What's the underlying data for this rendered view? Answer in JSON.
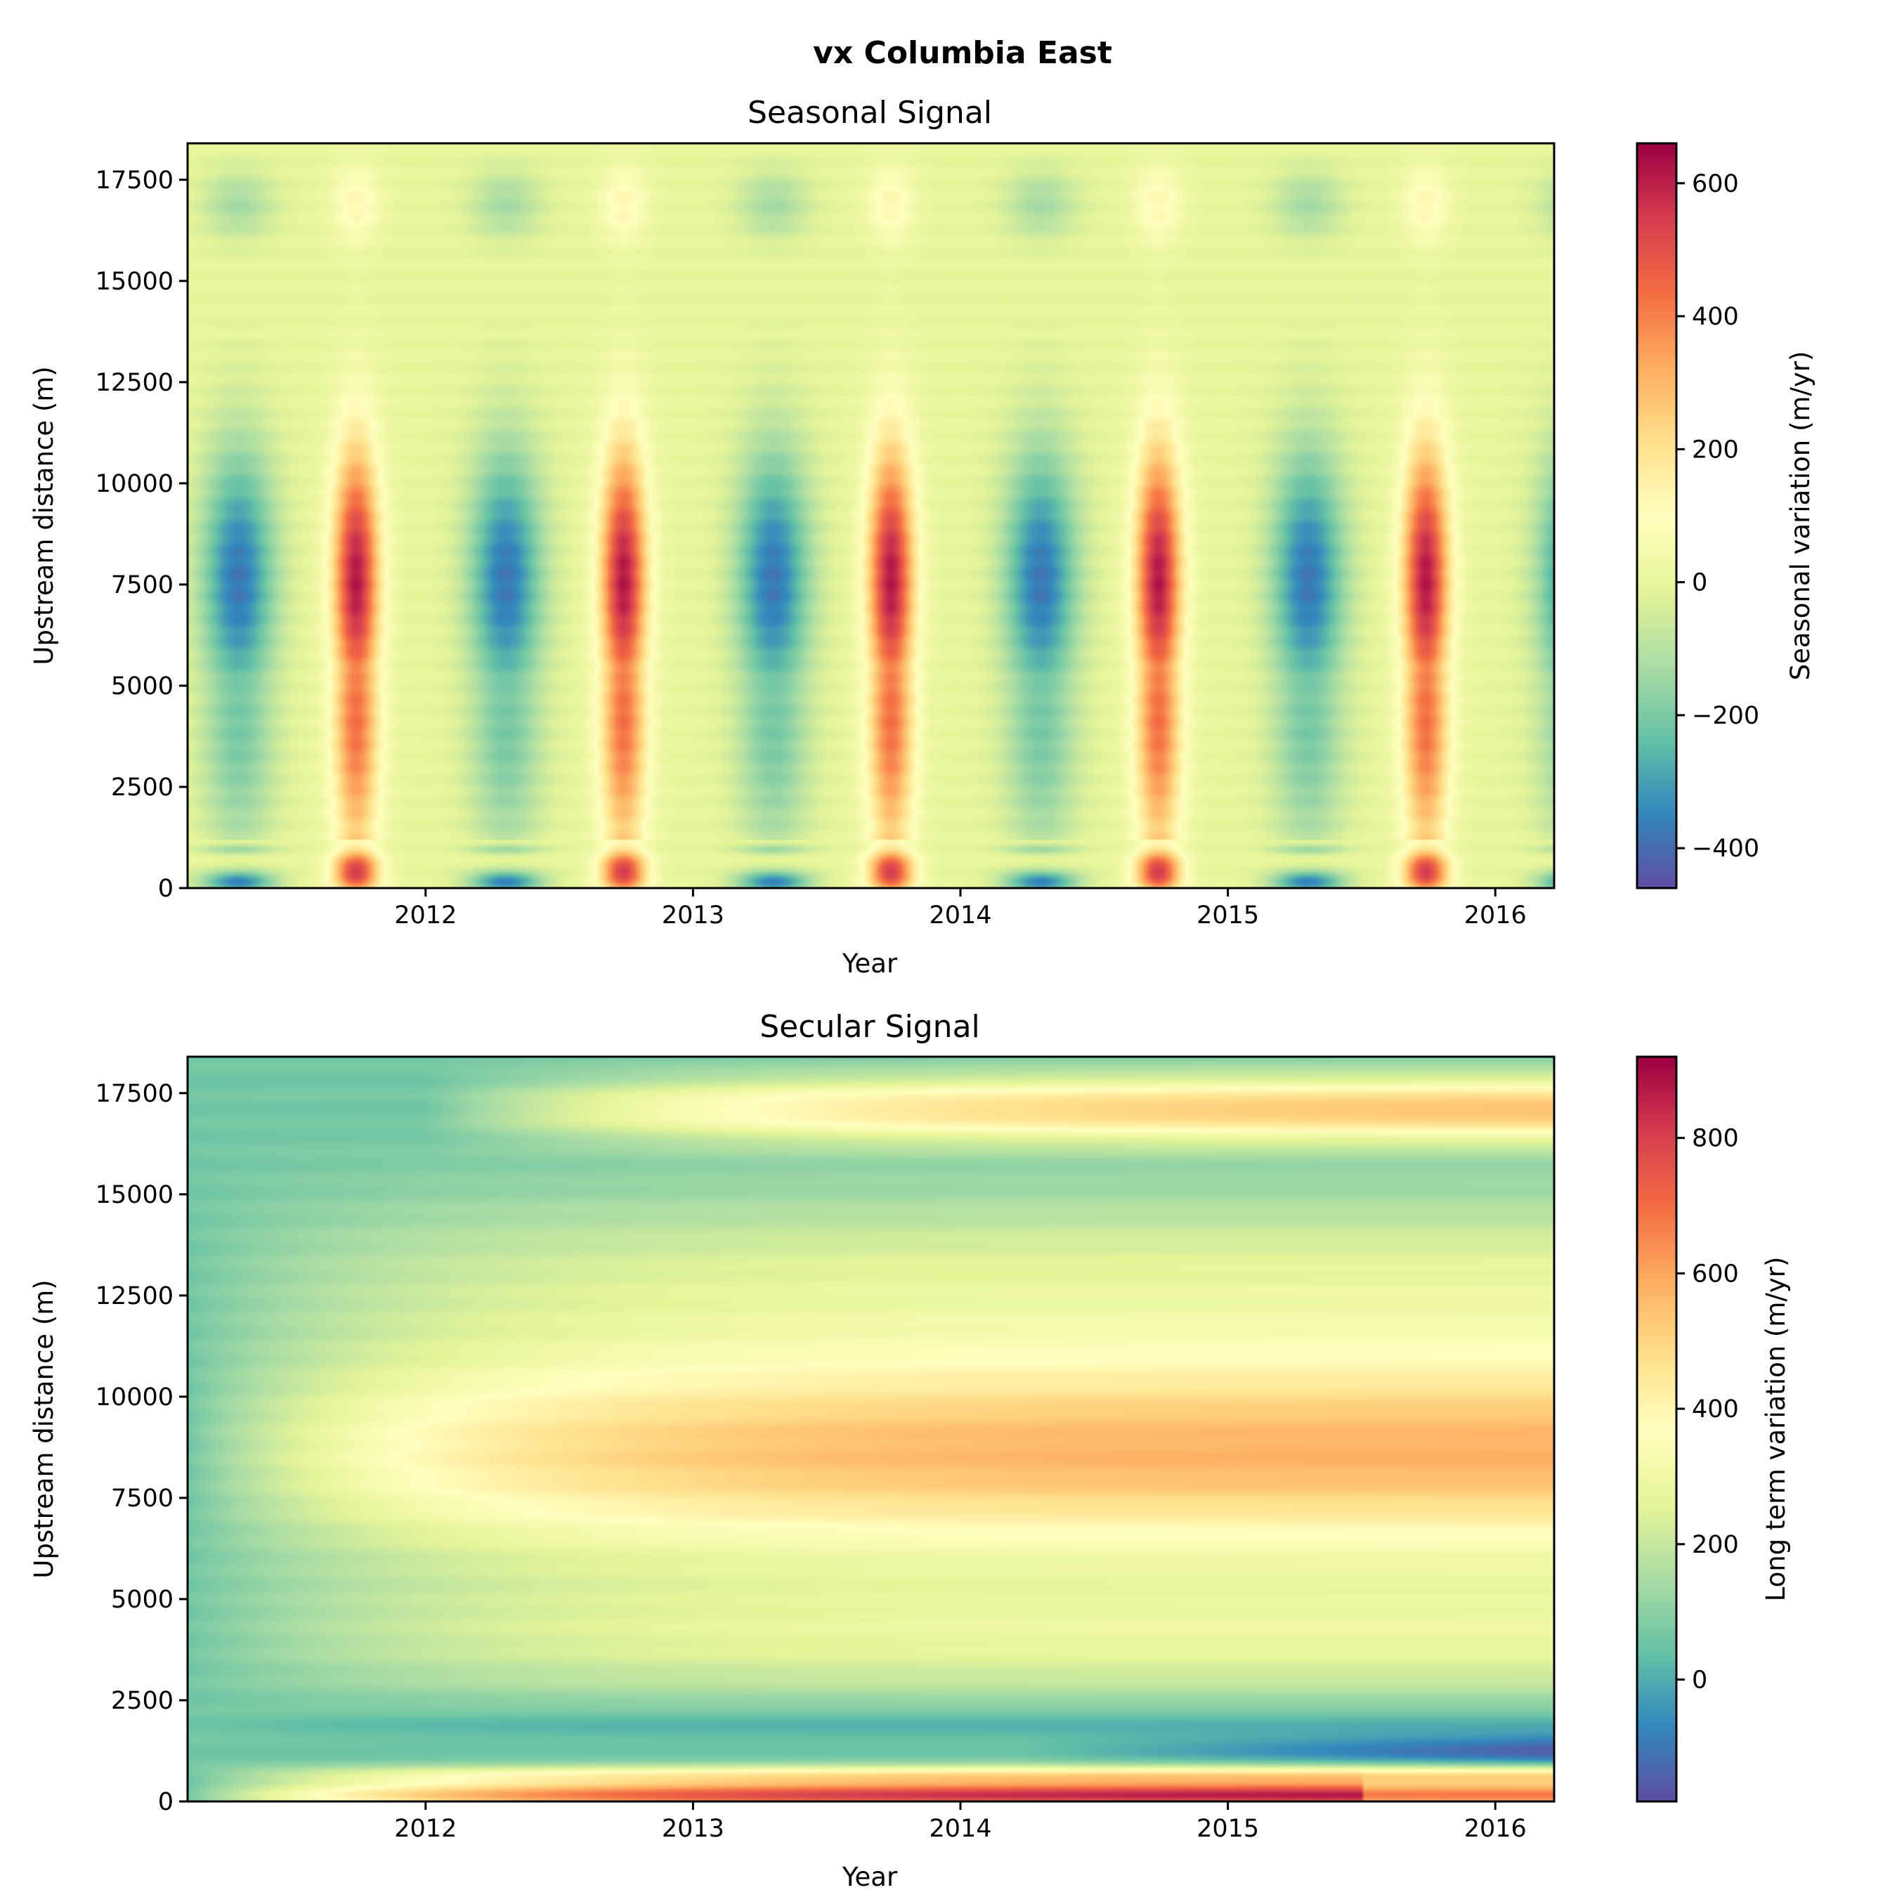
{
  "figure_title": "vx Columbia East",
  "chart_data": [
    {
      "type": "heatmap",
      "title": "Seasonal Signal",
      "xlabel": "Year",
      "ylabel": "Upstream distance (m)",
      "xlim": [
        2011.11,
        2016.22
      ],
      "ylim": [
        0,
        18400
      ],
      "xticks": [
        2012,
        2013,
        2014,
        2015,
        2016
      ],
      "yticks": [
        0,
        2500,
        5000,
        7500,
        10000,
        12500,
        15000,
        17500
      ],
      "colormap": "Spectral_r",
      "colorbar": {
        "label": "Seasonal variation (m/yr)",
        "range": [
          -460,
          660
        ],
        "ticks": [
          -400,
          -200,
          0,
          200,
          400,
          600
        ]
      },
      "pattern": {
        "description_values": {
          "peak_phase_year_fraction": 0.74,
          "peak_max": 620,
          "trough_phase_year_fraction": 0.3,
          "trough_min": -380,
          "band_core_distance_m": [
            5500,
            9500
          ],
          "surface_band_distance_m": [
            0,
            1200
          ],
          "upper_band_distance_m": [
            15500,
            17800
          ],
          "upper_band_amplitude": 130
        }
      }
    },
    {
      "type": "heatmap",
      "title": "Secular Signal",
      "xlabel": "Year",
      "ylabel": "Upstream distance (m)",
      "xlim": [
        2011.11,
        2016.22
      ],
      "ylim": [
        0,
        18400
      ],
      "xticks": [
        2012,
        2013,
        2014,
        2015,
        2016
      ],
      "yticks": [
        0,
        2500,
        5000,
        7500,
        10000,
        12500,
        15000,
        17500
      ],
      "colormap": "Spectral_r",
      "colorbar": {
        "label": "Long term variation (m/yr)",
        "range": [
          -180,
          920
        ],
        "ticks": [
          0,
          200,
          400,
          600,
          800
        ]
      },
      "pattern": {
        "description_values": {
          "start_value": 60,
          "mid_band_peak": 580,
          "mid_band_distance_m": [
            5800,
            11200
          ],
          "upper_band_peak": 560,
          "upper_band_distance_m": [
            15500,
            18000
          ],
          "near_terminus_peak": 900,
          "near_terminus_distance_m": [
            0,
            700
          ],
          "low_band_min": -150,
          "low_band_distance_m": [
            900,
            1600
          ]
        }
      }
    }
  ]
}
